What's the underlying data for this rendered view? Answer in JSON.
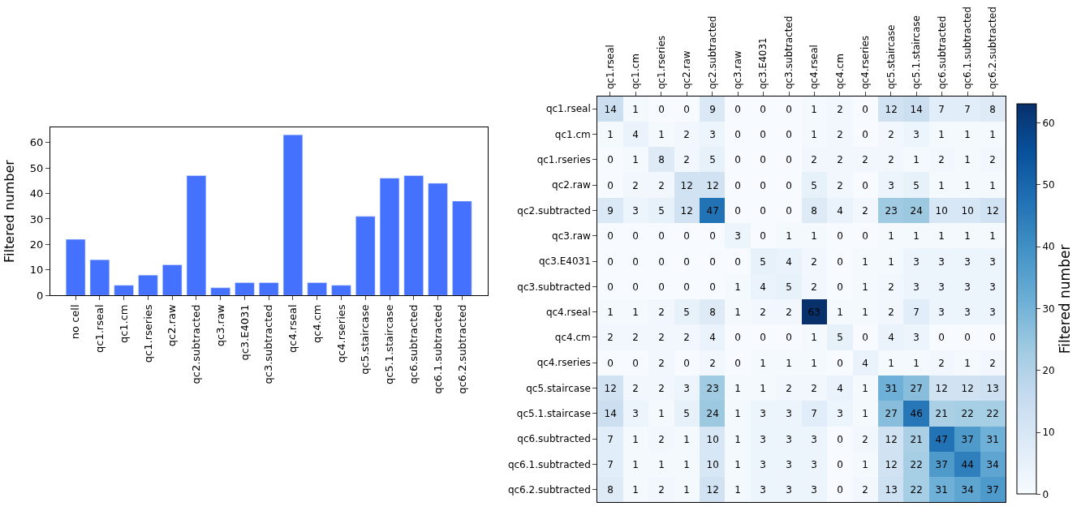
{
  "chart_data": [
    {
      "type": "bar",
      "ylabel": "Filtered number",
      "color": "#4571ff",
      "categories": [
        "no cell",
        "qc1.rseal",
        "qc1.cm",
        "qc1.rseries",
        "qc2.raw",
        "qc2.subtracted",
        "qc3.raw",
        "qc3.E4031",
        "qc3.subtracted",
        "qc4.rseal",
        "qc4.cm",
        "qc4.rseries",
        "qc5.staircase",
        "qc5.1.staircase",
        "qc6.subtracted",
        "qc6.1.subtracted",
        "qc6.2.subtracted"
      ],
      "values": [
        22,
        14,
        4,
        8,
        12,
        47,
        3,
        5,
        5,
        63,
        5,
        4,
        31,
        46,
        47,
        44,
        37
      ],
      "ylim": [
        0,
        66
      ],
      "yticks": [
        0,
        10,
        20,
        30,
        40,
        50,
        60
      ]
    },
    {
      "type": "heatmap",
      "clabel": "Filtered number",
      "data_labels": true,
      "clim": [
        0,
        63
      ],
      "cticks": [
        0,
        10,
        20,
        30,
        40,
        50,
        60
      ],
      "categories": [
        "qc1.rseal",
        "qc1.cm",
        "qc1.rseries",
        "qc2.raw",
        "qc2.subtracted",
        "qc3.raw",
        "qc3.E4031",
        "qc3.subtracted",
        "qc4.rseal",
        "qc4.cm",
        "qc4.rseries",
        "qc5.staircase",
        "qc5.1.staircase",
        "qc6.subtracted",
        "qc6.1.subtracted",
        "qc6.2.subtracted"
      ],
      "y_categories": [
        "qc1.rseal",
        "qc1.cm",
        "qc1.rseries",
        "qc2.raw",
        "qc2.subtracted",
        "qc3.raw",
        "qc3.E4031",
        "qc3.subtracted",
        "qc4.rseal",
        "qc4.cm",
        "qc4.rseries",
        "qc5.staircase",
        "qc5.1.staircase",
        "qc6.subtracted",
        "qc6.1.subtracted",
        "qc6.2.subtracted"
      ],
      "cells": [
        [
          14,
          1,
          0,
          0,
          9,
          0,
          0,
          0,
          1,
          2,
          0,
          12,
          14,
          7,
          7,
          8
        ],
        [
          1,
          4,
          1,
          2,
          3,
          0,
          0,
          0,
          1,
          2,
          0,
          2,
          3,
          1,
          1,
          1
        ],
        [
          0,
          1,
          8,
          2,
          5,
          0,
          0,
          0,
          2,
          2,
          2,
          2,
          1,
          2,
          1,
          2
        ],
        [
          0,
          2,
          2,
          12,
          12,
          0,
          0,
          0,
          5,
          2,
          0,
          3,
          5,
          1,
          1,
          1
        ],
        [
          9,
          3,
          5,
          12,
          47,
          0,
          0,
          0,
          8,
          4,
          2,
          23,
          24,
          10,
          10,
          12
        ],
        [
          0,
          0,
          0,
          0,
          0,
          3,
          0,
          1,
          1,
          0,
          0,
          1,
          1,
          1,
          1,
          1
        ],
        [
          0,
          0,
          0,
          0,
          0,
          0,
          5,
          4,
          2,
          0,
          1,
          1,
          3,
          3,
          3,
          3
        ],
        [
          0,
          0,
          0,
          0,
          0,
          1,
          4,
          5,
          2,
          0,
          1,
          2,
          3,
          3,
          3,
          3
        ],
        [
          1,
          1,
          2,
          5,
          8,
          1,
          2,
          2,
          63,
          1,
          1,
          2,
          7,
          3,
          3,
          3
        ],
        [
          2,
          2,
          2,
          2,
          4,
          0,
          0,
          0,
          1,
          5,
          0,
          4,
          3,
          0,
          0,
          0
        ],
        [
          0,
          0,
          2,
          0,
          2,
          0,
          1,
          1,
          1,
          0,
          4,
          1,
          1,
          2,
          1,
          2
        ],
        [
          12,
          2,
          2,
          3,
          23,
          1,
          1,
          2,
          2,
          4,
          1,
          31,
          27,
          12,
          12,
          13
        ],
        [
          14,
          3,
          1,
          5,
          24,
          1,
          3,
          3,
          7,
          3,
          1,
          27,
          46,
          21,
          22,
          22
        ],
        [
          7,
          1,
          2,
          1,
          10,
          1,
          3,
          3,
          3,
          0,
          2,
          12,
          21,
          47,
          37,
          31
        ],
        [
          7,
          1,
          1,
          1,
          10,
          1,
          3,
          3,
          3,
          0,
          1,
          12,
          22,
          37,
          44,
          34
        ],
        [
          8,
          1,
          2,
          1,
          12,
          1,
          3,
          3,
          3,
          0,
          2,
          13,
          22,
          31,
          34,
          37
        ]
      ]
    }
  ]
}
